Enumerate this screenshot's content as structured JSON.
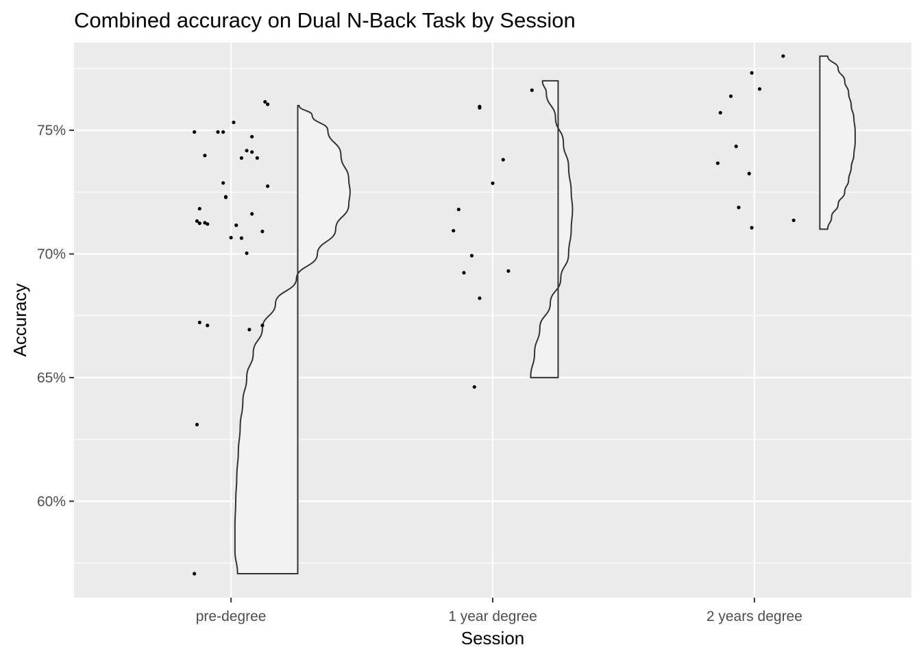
{
  "chart_data": {
    "type": "raincloud",
    "title": "Combined accuracy on Dual N-Back Task by Session",
    "xlabel": "Session",
    "ylabel": "Accuracy",
    "categories": [
      "pre-degree",
      "1 year degree",
      "2 years degree"
    ],
    "ylim": [
      0.561,
      0.7855
    ],
    "yticks": [
      0.6,
      0.65,
      0.7,
      0.75
    ],
    "ytick_labels": [
      "60%",
      "65%",
      "70%",
      "75%"
    ],
    "grid": true,
    "legend": "none",
    "colors": {
      "panel": "#EBEBEB",
      "grid": "#FFFFFF",
      "violin_fill": "#F2F2F2",
      "violin_stroke": "#333333",
      "point": "#000000"
    },
    "points": [
      {
        "session": "pre-degree",
        "jitter": -0.14,
        "y": 0.7493
      },
      {
        "session": "pre-degree",
        "jitter": -0.05,
        "y": 0.7493
      },
      {
        "session": "pre-degree",
        "jitter": -0.03,
        "y": 0.7493
      },
      {
        "session": "pre-degree",
        "jitter": 0.01,
        "y": 0.7532
      },
      {
        "session": "pre-degree",
        "jitter": 0.08,
        "y": 0.7474
      },
      {
        "session": "pre-degree",
        "jitter": 0.13,
        "y": 0.7615
      },
      {
        "session": "pre-degree",
        "jitter": 0.14,
        "y": 0.7605
      },
      {
        "session": "pre-degree",
        "jitter": -0.1,
        "y": 0.7398
      },
      {
        "session": "pre-degree",
        "jitter": 0.06,
        "y": 0.7418
      },
      {
        "session": "pre-degree",
        "jitter": 0.08,
        "y": 0.7412
      },
      {
        "session": "pre-degree",
        "jitter": 0.04,
        "y": 0.7388
      },
      {
        "session": "pre-degree",
        "jitter": 0.1,
        "y": 0.7388
      },
      {
        "session": "pre-degree",
        "jitter": -0.03,
        "y": 0.7287
      },
      {
        "session": "pre-degree",
        "jitter": 0.14,
        "y": 0.7274
      },
      {
        "session": "pre-degree",
        "jitter": -0.02,
        "y": 0.7231
      },
      {
        "session": "pre-degree",
        "jitter": -0.02,
        "y": 0.7229
      },
      {
        "session": "pre-degree",
        "jitter": -0.12,
        "y": 0.7183
      },
      {
        "session": "pre-degree",
        "jitter": 0.08,
        "y": 0.7162
      },
      {
        "session": "pre-degree",
        "jitter": -0.13,
        "y": 0.7133
      },
      {
        "session": "pre-degree",
        "jitter": -0.12,
        "y": 0.7124
      },
      {
        "session": "pre-degree",
        "jitter": -0.1,
        "y": 0.7126
      },
      {
        "session": "pre-degree",
        "jitter": -0.09,
        "y": 0.7121
      },
      {
        "session": "pre-degree",
        "jitter": 0.02,
        "y": 0.7116
      },
      {
        "session": "pre-degree",
        "jitter": 0.12,
        "y": 0.7091
      },
      {
        "session": "pre-degree",
        "jitter": 0.0,
        "y": 0.7066
      },
      {
        "session": "pre-degree",
        "jitter": 0.04,
        "y": 0.7064
      },
      {
        "session": "pre-degree",
        "jitter": 0.06,
        "y": 0.7003
      },
      {
        "session": "pre-degree",
        "jitter": -0.12,
        "y": 0.6723
      },
      {
        "session": "pre-degree",
        "jitter": -0.09,
        "y": 0.6711
      },
      {
        "session": "pre-degree",
        "jitter": 0.12,
        "y": 0.6711
      },
      {
        "session": "pre-degree",
        "jitter": 0.07,
        "y": 0.6694
      },
      {
        "session": "pre-degree",
        "jitter": -0.13,
        "y": 0.631
      },
      {
        "session": "pre-degree",
        "jitter": -0.14,
        "y": 0.5707
      },
      {
        "session": "1 year degree",
        "jitter": 0.15,
        "y": 0.7662
      },
      {
        "session": "1 year degree",
        "jitter": -0.05,
        "y": 0.7596
      },
      {
        "session": "1 year degree",
        "jitter": -0.05,
        "y": 0.7591
      },
      {
        "session": "1 year degree",
        "jitter": 0.04,
        "y": 0.7381
      },
      {
        "session": "1 year degree",
        "jitter": 0.0,
        "y": 0.7286
      },
      {
        "session": "1 year degree",
        "jitter": -0.13,
        "y": 0.718
      },
      {
        "session": "1 year degree",
        "jitter": -0.15,
        "y": 0.7094
      },
      {
        "session": "1 year degree",
        "jitter": -0.08,
        "y": 0.6993
      },
      {
        "session": "1 year degree",
        "jitter": 0.06,
        "y": 0.6931
      },
      {
        "session": "1 year degree",
        "jitter": -0.11,
        "y": 0.6924
      },
      {
        "session": "1 year degree",
        "jitter": -0.05,
        "y": 0.6821
      },
      {
        "session": "1 year degree",
        "jitter": -0.07,
        "y": 0.6462
      },
      {
        "session": "2 years degree",
        "jitter": 0.11,
        "y": 0.78
      },
      {
        "session": "2 years degree",
        "jitter": -0.01,
        "y": 0.7732
      },
      {
        "session": "2 years degree",
        "jitter": 0.02,
        "y": 0.7667
      },
      {
        "session": "2 years degree",
        "jitter": -0.09,
        "y": 0.7638
      },
      {
        "session": "2 years degree",
        "jitter": -0.13,
        "y": 0.7571
      },
      {
        "session": "2 years degree",
        "jitter": -0.07,
        "y": 0.7435
      },
      {
        "session": "2 years degree",
        "jitter": -0.14,
        "y": 0.7367
      },
      {
        "session": "2 years degree",
        "jitter": -0.02,
        "y": 0.7325
      },
      {
        "session": "2 years degree",
        "jitter": -0.06,
        "y": 0.7188
      },
      {
        "session": "2 years degree",
        "jitter": -0.01,
        "y": 0.7106
      },
      {
        "session": "2 years degree",
        "jitter": 0.15,
        "y": 0.7136
      }
    ],
    "half_violins": [
      {
        "session": "pre-degree",
        "range": [
          0.5707,
          0.76
        ],
        "profile": [
          [
            0.76,
            0.26
          ],
          [
            0.756,
            0.31
          ],
          [
            0.75,
            0.37
          ],
          [
            0.74,
            0.42
          ],
          [
            0.73,
            0.45
          ],
          [
            0.725,
            0.455
          ],
          [
            0.72,
            0.45
          ],
          [
            0.71,
            0.4
          ],
          [
            0.7,
            0.33
          ],
          [
            0.69,
            0.25
          ],
          [
            0.68,
            0.17
          ],
          [
            0.67,
            0.12
          ],
          [
            0.66,
            0.085
          ],
          [
            0.65,
            0.06
          ],
          [
            0.64,
            0.045
          ],
          [
            0.63,
            0.035
          ],
          [
            0.62,
            0.028
          ],
          [
            0.61,
            0.022
          ],
          [
            0.6,
            0.018
          ],
          [
            0.59,
            0.015
          ],
          [
            0.58,
            0.015
          ],
          [
            0.5707,
            0.025
          ]
        ]
      },
      {
        "session": "1 year degree",
        "range": [
          0.65,
          0.77
        ],
        "profile": [
          [
            0.77,
            0.19
          ],
          [
            0.765,
            0.205
          ],
          [
            0.755,
            0.24
          ],
          [
            0.745,
            0.27
          ],
          [
            0.735,
            0.29
          ],
          [
            0.725,
            0.3
          ],
          [
            0.718,
            0.305
          ],
          [
            0.71,
            0.3
          ],
          [
            0.7,
            0.29
          ],
          [
            0.69,
            0.26
          ],
          [
            0.68,
            0.22
          ],
          [
            0.67,
            0.18
          ],
          [
            0.66,
            0.16
          ],
          [
            0.65,
            0.145
          ]
        ]
      },
      {
        "session": "2 years degree",
        "range": [
          0.71,
          0.78
        ],
        "profile": [
          [
            0.78,
            0.28
          ],
          [
            0.775,
            0.32
          ],
          [
            0.77,
            0.345
          ],
          [
            0.765,
            0.36
          ],
          [
            0.76,
            0.37
          ],
          [
            0.755,
            0.38
          ],
          [
            0.75,
            0.385
          ],
          [
            0.745,
            0.385
          ],
          [
            0.74,
            0.38
          ],
          [
            0.735,
            0.37
          ],
          [
            0.73,
            0.36
          ],
          [
            0.725,
            0.345
          ],
          [
            0.72,
            0.32
          ],
          [
            0.715,
            0.295
          ],
          [
            0.71,
            0.28
          ]
        ]
      }
    ]
  }
}
